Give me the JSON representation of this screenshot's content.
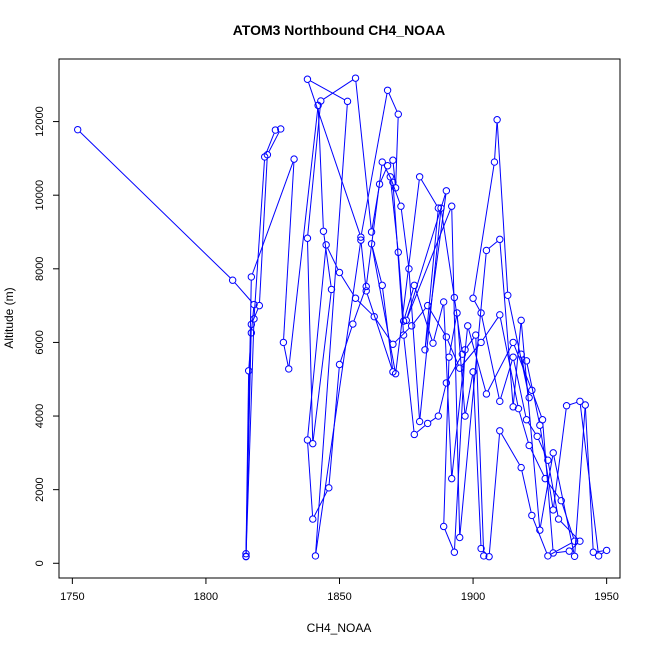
{
  "chart_data": {
    "type": "line",
    "title": "ATOM3 Northbound CH4_NOAA",
    "xlabel": "CH4_NOAA",
    "ylabel": "Altitude (m)",
    "xlim": [
      1745,
      1955
    ],
    "ylim": [
      -400,
      13700
    ],
    "x_ticks": [
      1750,
      1800,
      1850,
      1900,
      1950
    ],
    "y_ticks": [
      0,
      2000,
      4000,
      6000,
      8000,
      10000,
      12000
    ],
    "grid": false,
    "legend": "none",
    "series_color": "#0000ff",
    "x": [
      1752,
      1810,
      1818,
      1817,
      1816,
      1815,
      1815,
      1818,
      1822,
      1826,
      1828,
      1823,
      1820,
      1817,
      1815,
      1817,
      1833,
      1829,
      1831,
      1842,
      1844,
      1847,
      1840,
      1838,
      1843,
      1856,
      1862,
      1865,
      1868,
      1870,
      1871,
      1872,
      1868,
      1858,
      1838,
      1853,
      1841,
      1858,
      1860,
      1870,
      1866,
      1862,
      1871,
      1880,
      1887,
      1882,
      1890,
      1875,
      1892,
      1895,
      1905,
      1910,
      1915,
      1918,
      1925,
      1930,
      1938,
      1942,
      1945,
      1950,
      1947,
      1940,
      1935,
      1930,
      1925,
      1920,
      1918,
      1921,
      1913,
      1909,
      1908,
      1900,
      1903,
      1910,
      1915,
      1920,
      1924,
      1928,
      1932,
      1940,
      1936,
      1930,
      1926,
      1922,
      1915,
      1905,
      1898,
      1892,
      1889,
      1885,
      1878,
      1874,
      1872,
      1869,
      1873,
      1876,
      1880,
      1888,
      1893,
      1896,
      1890,
      1887,
      1883,
      1878,
      1874,
      1870,
      1866,
      1860,
      1855,
      1850,
      1846,
      1840,
      1838,
      1845,
      1850,
      1856,
      1863,
      1870,
      1877,
      1883,
      1890,
      1895,
      1903,
      1910,
      1917,
      1921,
      1927,
      1933,
      1938,
      1928,
      1922,
      1918,
      1910,
      1906,
      1903,
      1900,
      1897,
      1894,
      1891,
      1889,
      1893,
      1897,
      1901,
      1904
    ],
    "y": [
      11780,
      7690,
      7030,
      6260,
      5230,
      260,
      180,
      6640,
      11040,
      11770,
      11800,
      11100,
      7000,
      6490,
      190,
      7780,
      10980,
      6000,
      5280,
      12440,
      9020,
      7440,
      3250,
      8830,
      12560,
      13180,
      9000,
      10300,
      10800,
      10950,
      10200,
      12200,
      12850,
      8860,
      13150,
      12550,
      200,
      8780,
      7400,
      5200,
      7550,
      8680,
      5150,
      10500,
      9650,
      5800,
      10120,
      6600,
      9700,
      700,
      8500,
      8800,
      4250,
      6600,
      900,
      3000,
      190,
      4300,
      300,
      350,
      200,
      4400,
      4280,
      1450,
      3750,
      5500,
      5680,
      4500,
      7280,
      12050,
      10900,
      7200,
      6800,
      4400,
      5600,
      3900,
      3450,
      2800,
      1200,
      600,
      330,
      280,
      3900,
      4700,
      6000,
      4600,
      6450,
      2300,
      7100,
      5980,
      7550,
      6580,
      8450,
      10500,
      9700,
      8000,
      3850,
      9650,
      7220,
      5680,
      4900,
      4000,
      3800,
      3500,
      6200,
      10350,
      10900,
      7520,
      6500,
      5400,
      2050,
      1200,
      3350,
      8650,
      7900,
      7200,
      6700,
      5950,
      6450,
      7000,
      6150,
      5300,
      6000,
      6750,
      4200,
      3200,
      2300,
      1700,
      600,
      200,
      1300,
      2600,
      3600,
      180,
      400,
      5200,
      4000,
      6800,
      5600,
      1000,
      300,
      5800,
      6200,
      200
    ]
  }
}
